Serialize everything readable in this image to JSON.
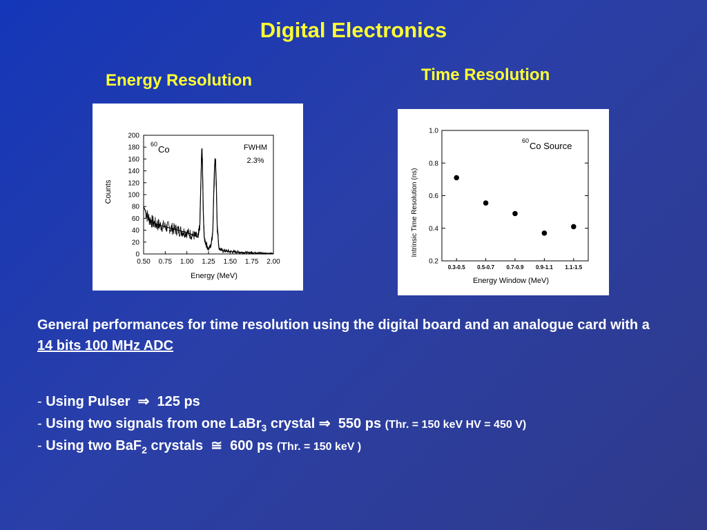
{
  "slide": {
    "title": "Digital Electronics",
    "energy_heading": "Energy Resolution",
    "time_heading": "Time Resolution"
  },
  "text": {
    "desc_prefix": "General performances for time resolution using the digital board and an analogue card with a ",
    "desc_link": "14 bits 100 MHz ADC",
    "b1_label": "Using Pulser",
    "b1_value": "125 ps",
    "b2_label_pre": "Using two signals from one LaBr",
    "b2_sub": "3",
    "b2_label_post": " crystal",
    "b2_value": "550 ps",
    "b2_note": "(Thr. = 150 keV  HV = 450 V)",
    "b3_label_pre": "Using two BaF",
    "b3_sub": "2",
    "b3_label_post": "  crystals",
    "b3_value": "600 ps",
    "b3_note": "(Thr. = 150 keV )",
    "dash": "-",
    "arrow": "⇒",
    "approx": "≅"
  },
  "colors": {
    "title": "#ffff33",
    "text": "#ffffff",
    "panel": "#ffffff"
  },
  "chart_data": [
    {
      "type": "line",
      "title": "",
      "xlabel": "Energy (MeV)",
      "ylabel": "Counts",
      "xlim": [
        0.5,
        2.0
      ],
      "ylim": [
        0,
        200
      ],
      "xticks": [
        "0.50",
        "0.75",
        "1.00",
        "1.25",
        "1.50",
        "1.75",
        "2.00"
      ],
      "yticks": [
        "0",
        "20",
        "40",
        "60",
        "80",
        "100",
        "120",
        "140",
        "160",
        "180",
        "200"
      ],
      "annotations": {
        "isotope_sup": "60",
        "isotope": "Co",
        "fwhm_label": "FWHM",
        "fwhm_value": "2.3%"
      },
      "x": [
        0.5,
        0.55,
        0.6,
        0.65,
        0.7,
        0.75,
        0.8,
        0.85,
        0.9,
        0.95,
        1.0,
        1.05,
        1.1,
        1.13,
        1.15,
        1.16,
        1.17,
        1.175,
        1.18,
        1.19,
        1.2,
        1.22,
        1.25,
        1.28,
        1.3,
        1.31,
        1.32,
        1.33,
        1.34,
        1.35,
        1.37,
        1.4,
        1.5,
        1.6,
        1.7,
        1.8,
        1.9,
        2.0
      ],
      "y": [
        80,
        62,
        54,
        50,
        48,
        46,
        44,
        42,
        40,
        38,
        36,
        33,
        30,
        28,
        50,
        110,
        165,
        178,
        150,
        70,
        28,
        18,
        8,
        15,
        40,
        100,
        150,
        157,
        120,
        50,
        10,
        6,
        4,
        3,
        2,
        2,
        1,
        1
      ],
      "grid": false
    },
    {
      "type": "scatter",
      "title": "",
      "xlabel": "Energy Window  (MeV)",
      "ylabel": "Intrinsic Time Resolution (ns)",
      "categories": [
        "0.3-0.5",
        "0.5-0.7",
        "0.7-0.9",
        "0.9-1.1",
        "1.1-1.5"
      ],
      "values": [
        0.71,
        0.555,
        0.49,
        0.37,
        0.41
      ],
      "ylim": [
        0.2,
        1.0
      ],
      "yticks": [
        "0.2",
        "0.4",
        "0.6",
        "0.8",
        "1.0"
      ],
      "annotations": {
        "isotope_sup": "60",
        "isotope": "Co Source"
      },
      "grid": false
    }
  ]
}
